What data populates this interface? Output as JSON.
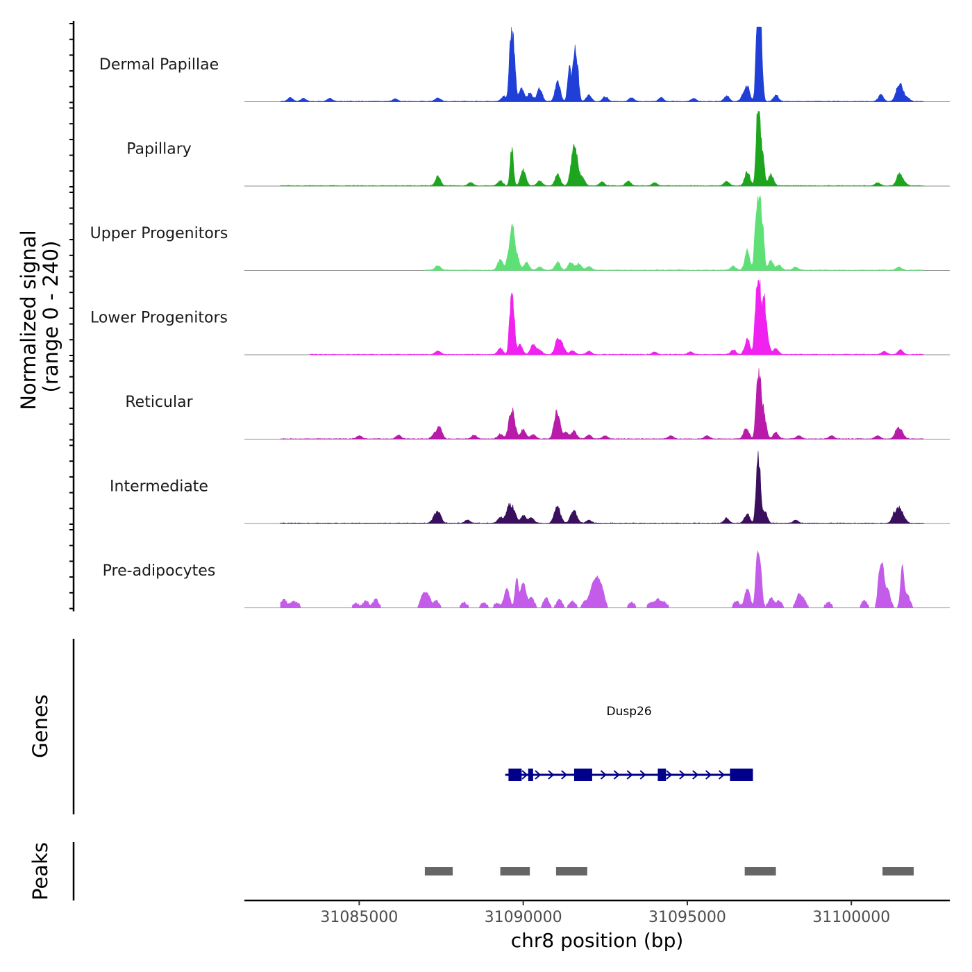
{
  "chart_data": {
    "type": "area",
    "title": "",
    "chromosome": "chr8",
    "xlabel": "chr8 position (bp)",
    "ylabel": "Normalized signal",
    "ylabel_range": "(range 0 - 240)",
    "yrange": [
      0,
      240
    ],
    "xlim": [
      31081500,
      31103000
    ],
    "xticks": [
      31085000,
      31090000,
      31095000,
      31100000
    ],
    "xtick_labels": [
      "31085000",
      "31090000",
      "31095000",
      "31100000"
    ],
    "series": [
      {
        "name": "Dermal Papillae",
        "color": "#1f3fd6",
        "peaks": [
          [
            31082900,
            12
          ],
          [
            31083300,
            10
          ],
          [
            31084100,
            10
          ],
          [
            31086100,
            8
          ],
          [
            31087400,
            12
          ],
          [
            31089400,
            15
          ],
          [
            31089620,
            190
          ],
          [
            31089720,
            150
          ],
          [
            31089950,
            40
          ],
          [
            31090200,
            25
          ],
          [
            31090500,
            40
          ],
          [
            31091050,
            65
          ],
          [
            31091400,
            110
          ],
          [
            31091550,
            150
          ],
          [
            31091650,
            100
          ],
          [
            31092000,
            20
          ],
          [
            31092500,
            15
          ],
          [
            31093300,
            12
          ],
          [
            31094200,
            12
          ],
          [
            31095200,
            10
          ],
          [
            31096200,
            18
          ],
          [
            31096700,
            15
          ],
          [
            31096830,
            45
          ],
          [
            31097130,
            180
          ],
          [
            31097190,
            200
          ],
          [
            31097250,
            150
          ],
          [
            31097700,
            20
          ],
          [
            31100900,
            20
          ],
          [
            31101400,
            30
          ],
          [
            31101520,
            40
          ],
          [
            31101700,
            12
          ]
        ],
        "noise": [
          31082600,
          31102200
        ]
      },
      {
        "name": "Papillary",
        "color": "#1ea51e",
        "peaks": [
          [
            31087400,
            30
          ],
          [
            31088400,
            10
          ],
          [
            31089300,
            15
          ],
          [
            31089650,
            120
          ],
          [
            31090000,
            50
          ],
          [
            31090500,
            15
          ],
          [
            31091050,
            35
          ],
          [
            31091500,
            70
          ],
          [
            31091600,
            80
          ],
          [
            31091800,
            25
          ],
          [
            31092400,
            12
          ],
          [
            31093200,
            15
          ],
          [
            31094000,
            10
          ],
          [
            31096200,
            15
          ],
          [
            31096830,
            45
          ],
          [
            31097130,
            150
          ],
          [
            31097190,
            170
          ],
          [
            31097300,
            100
          ],
          [
            31097550,
            35
          ],
          [
            31100800,
            10
          ],
          [
            31101450,
            35
          ],
          [
            31101600,
            12
          ]
        ],
        "noise": [
          31082600,
          31102200
        ]
      },
      {
        "name": "Upper Progenitors",
        "color": "#5ee077",
        "peaks": [
          [
            31087400,
            15
          ],
          [
            31089300,
            35
          ],
          [
            31089600,
            75
          ],
          [
            31089680,
            100
          ],
          [
            31089800,
            50
          ],
          [
            31090100,
            25
          ],
          [
            31090500,
            10
          ],
          [
            31091050,
            25
          ],
          [
            31091450,
            25
          ],
          [
            31091700,
            20
          ],
          [
            31092000,
            12
          ],
          [
            31096400,
            12
          ],
          [
            31096830,
            60
          ],
          [
            31097100,
            180
          ],
          [
            31097200,
            200
          ],
          [
            31097300,
            120
          ],
          [
            31097550,
            30
          ],
          [
            31097800,
            15
          ],
          [
            31098300,
            10
          ],
          [
            31101450,
            10
          ]
        ],
        "noise": [
          31087000,
          31102200
        ]
      },
      {
        "name": "Lower Progenitors",
        "color": "#f022f0",
        "peaks": [
          [
            31087400,
            12
          ],
          [
            31089300,
            20
          ],
          [
            31089620,
            150
          ],
          [
            31089700,
            120
          ],
          [
            31089900,
            30
          ],
          [
            31090300,
            30
          ],
          [
            31090500,
            15
          ],
          [
            31091050,
            50
          ],
          [
            31091200,
            25
          ],
          [
            31091500,
            12
          ],
          [
            31092000,
            10
          ],
          [
            31094000,
            8
          ],
          [
            31095100,
            8
          ],
          [
            31096400,
            15
          ],
          [
            31096830,
            50
          ],
          [
            31097100,
            170
          ],
          [
            31097200,
            200
          ],
          [
            31097330,
            130
          ],
          [
            31097400,
            80
          ],
          [
            31097700,
            20
          ],
          [
            31101000,
            10
          ],
          [
            31101500,
            15
          ]
        ],
        "noise": [
          31083500,
          31102200
        ]
      },
      {
        "name": "Reticular",
        "color": "#b81aaa",
        "peaks": [
          [
            31085000,
            10
          ],
          [
            31086200,
            12
          ],
          [
            31087300,
            15
          ],
          [
            31087450,
            35
          ],
          [
            31088500,
            12
          ],
          [
            31089300,
            15
          ],
          [
            31089620,
            60
          ],
          [
            31089700,
            45
          ],
          [
            31090000,
            30
          ],
          [
            31090300,
            15
          ],
          [
            31091000,
            55
          ],
          [
            31091070,
            45
          ],
          [
            31091300,
            20
          ],
          [
            31091550,
            25
          ],
          [
            31092000,
            12
          ],
          [
            31092500,
            10
          ],
          [
            31094500,
            10
          ],
          [
            31095600,
            10
          ],
          [
            31096800,
            35
          ],
          [
            31097130,
            150
          ],
          [
            31097220,
            130
          ],
          [
            31097320,
            80
          ],
          [
            31097700,
            20
          ],
          [
            31098400,
            10
          ],
          [
            31099400,
            10
          ],
          [
            31100800,
            10
          ],
          [
            31101400,
            30
          ],
          [
            31101530,
            20
          ]
        ],
        "noise": [
          31082600,
          31102200
        ]
      },
      {
        "name": "Intermediate",
        "color": "#3a0f5e",
        "peaks": [
          [
            31087300,
            20
          ],
          [
            31087430,
            30
          ],
          [
            31088300,
            10
          ],
          [
            31089300,
            20
          ],
          [
            31089550,
            50
          ],
          [
            31089700,
            40
          ],
          [
            31090000,
            25
          ],
          [
            31090250,
            18
          ],
          [
            31091000,
            38
          ],
          [
            31091100,
            25
          ],
          [
            31091500,
            30
          ],
          [
            31091600,
            20
          ],
          [
            31092000,
            10
          ],
          [
            31096200,
            15
          ],
          [
            31096820,
            30
          ],
          [
            31097130,
            140
          ],
          [
            31097200,
            130
          ],
          [
            31097350,
            40
          ],
          [
            31098300,
            10
          ],
          [
            31101320,
            30
          ],
          [
            31101470,
            40
          ],
          [
            31101600,
            15
          ]
        ],
        "noise": [
          31082600,
          31102200
        ]
      },
      {
        "name": "Pre-adipocytes",
        "color": "#c25ce9",
        "peaks": [
          [
            31082700,
            25
          ],
          [
            31082950,
            15
          ],
          [
            31083100,
            12
          ],
          [
            31084900,
            12
          ],
          [
            31085200,
            20
          ],
          [
            31085500,
            25
          ],
          [
            31086950,
            40
          ],
          [
            31087100,
            35
          ],
          [
            31087350,
            20
          ],
          [
            31088200,
            15
          ],
          [
            31088800,
            15
          ],
          [
            31089200,
            12
          ],
          [
            31089500,
            60
          ],
          [
            31089800,
            90
          ],
          [
            31090000,
            80
          ],
          [
            31090250,
            30
          ],
          [
            31090700,
            30
          ],
          [
            31091100,
            25
          ],
          [
            31091500,
            20
          ],
          [
            31091900,
            20
          ],
          [
            31092100,
            60
          ],
          [
            31092250,
            80
          ],
          [
            31092400,
            55
          ],
          [
            31093300,
            15
          ],
          [
            31093900,
            15
          ],
          [
            31094100,
            25
          ],
          [
            31094300,
            15
          ],
          [
            31096500,
            20
          ],
          [
            31096830,
            60
          ],
          [
            31097130,
            160
          ],
          [
            31097230,
            120
          ],
          [
            31097550,
            30
          ],
          [
            31097800,
            20
          ],
          [
            31098400,
            40
          ],
          [
            31098550,
            20
          ],
          [
            31099300,
            15
          ],
          [
            31100400,
            20
          ],
          [
            31100850,
            100
          ],
          [
            31100950,
            120
          ],
          [
            31101100,
            60
          ],
          [
            31101550,
            130
          ],
          [
            31101700,
            40
          ]
        ],
        "noise": [
          31082600,
          31102200
        ],
        "sparse": true
      }
    ],
    "genes": [
      {
        "name": "Dusp26",
        "strand": "+",
        "start": 31089450,
        "end": 31097000,
        "color": "#00008b",
        "exons": [
          [
            31089550,
            31089950
          ],
          [
            31090150,
            31090300
          ],
          [
            31091550,
            31092100
          ],
          [
            31094100,
            31094350
          ],
          [
            31096300,
            31097000
          ]
        ]
      }
    ],
    "peaks_track": {
      "label": "Peaks",
      "color": "#666666",
      "regions": [
        [
          31087000,
          31087850
        ],
        [
          31089300,
          31090200
        ],
        [
          31091000,
          31091950
        ],
        [
          31096750,
          31097700
        ],
        [
          31100950,
          31101900
        ]
      ]
    },
    "panels": {
      "signal": "Normalized signal",
      "genes": "Genes",
      "peaks": "Peaks"
    }
  }
}
